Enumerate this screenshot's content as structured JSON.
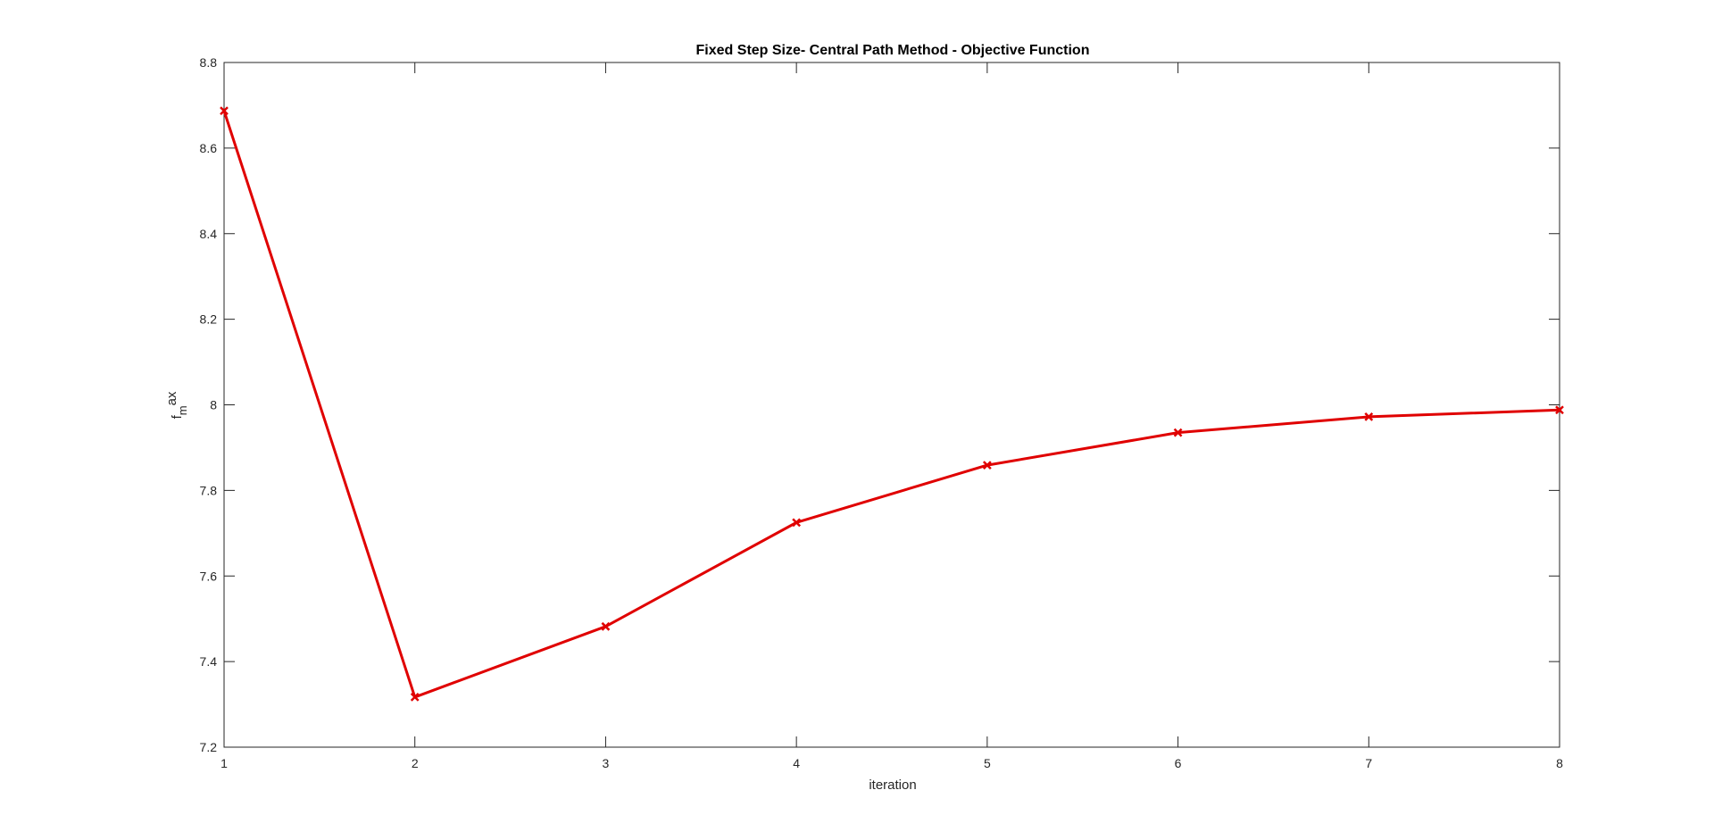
{
  "chart_data": {
    "type": "line",
    "title": "Fixed Step Size- Central Path Method - Objective Function",
    "xlabel": "iteration",
    "ylabel": {
      "base": "f",
      "subscript": "m",
      "superscript": "ax"
    },
    "xlim": [
      1,
      8
    ],
    "ylim": [
      7.2,
      8.8
    ],
    "xticks": [
      "1",
      "2",
      "3",
      "4",
      "5",
      "6",
      "7",
      "8"
    ],
    "yticks": [
      "7.2",
      "7.4",
      "7.6",
      "7.8",
      "8",
      "8.2",
      "8.4",
      "8.6",
      "8.8"
    ],
    "grid": false,
    "legend": false,
    "marker": "x",
    "color": "#e00000",
    "series": [
      {
        "x": [
          1,
          2,
          3,
          4,
          5,
          6,
          7,
          8
        ],
        "values": [
          8.687,
          7.317,
          7.482,
          7.725,
          7.859,
          7.935,
          7.972,
          7.988
        ]
      }
    ]
  }
}
